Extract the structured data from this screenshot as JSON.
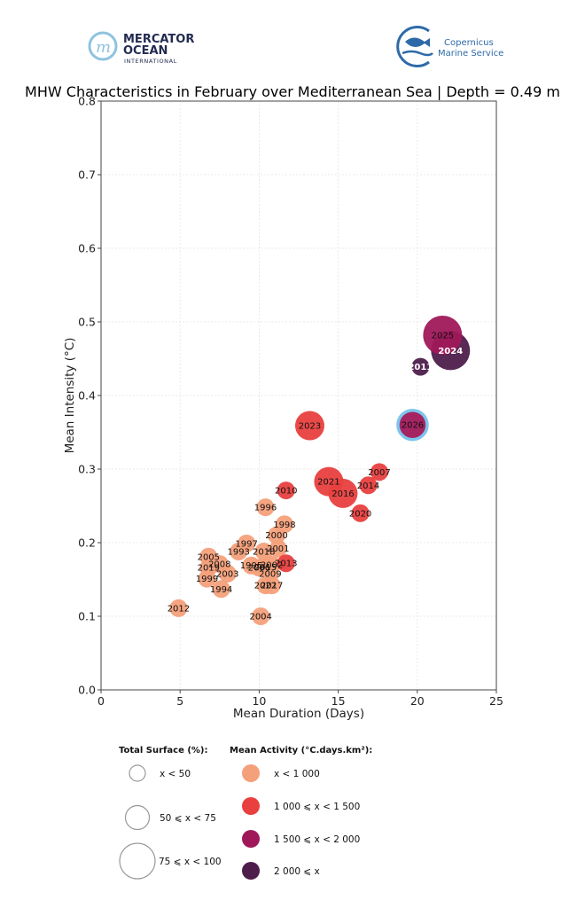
{
  "logos": {
    "mercator": {
      "line1": "MERCATOR",
      "line2": "OCEAN",
      "line3": "INTERNATIONAL"
    },
    "copernicus": {
      "line1": "Copernicus",
      "line2": "Marine Service"
    }
  },
  "chart_data": {
    "type": "scatter",
    "title": "MHW Characteristics in February over Mediterranean Sea | Depth = 0.49 m",
    "xlabel": "Mean Duration (Days)",
    "ylabel": "Mean Intensity (°C)",
    "xlim": [
      0,
      25
    ],
    "ylim": [
      0.0,
      0.8
    ],
    "xticks": [
      0,
      5,
      10,
      15,
      20,
      25
    ],
    "xtick_labels": [
      "0",
      "5",
      "10",
      "15",
      "20",
      "25"
    ],
    "yticks": [
      0.0,
      0.1,
      0.2,
      0.3,
      0.4,
      0.5,
      0.6,
      0.7,
      0.8
    ],
    "ytick_labels": [
      "0.0",
      "0.1",
      "0.2",
      "0.3",
      "0.4",
      "0.5",
      "0.6",
      "0.7",
      "0.8"
    ],
    "grid": true,
    "highlight_year": "2026",
    "highlight_color": "#7cc6ee",
    "activity_colors": {
      "lt1000": "#f4a07a",
      "1000to1500": "#e8403f",
      "1500to2000": "#a0185a",
      "ge2000": "#4e1d4c"
    },
    "points": [
      {
        "year": "2012",
        "x": 4.9,
        "y": 0.111,
        "surface": "lt50",
        "activity": "lt1000"
      },
      {
        "year": "2004",
        "x": 10.1,
        "y": 0.1,
        "surface": "lt50",
        "activity": "lt1000"
      },
      {
        "year": "1994",
        "x": 7.6,
        "y": 0.137,
        "surface": "lt50",
        "activity": "lt1000"
      },
      {
        "year": "1999",
        "x": 6.7,
        "y": 0.151,
        "surface": "lt50",
        "activity": "lt1000"
      },
      {
        "year": "2003",
        "x": 8.0,
        "y": 0.158,
        "surface": "lt50",
        "activity": "lt1000"
      },
      {
        "year": "2019",
        "x": 6.8,
        "y": 0.166,
        "surface": "lt50",
        "activity": "lt1000"
      },
      {
        "year": "2008",
        "x": 7.5,
        "y": 0.171,
        "surface": "lt50",
        "activity": "lt1000"
      },
      {
        "year": "2005",
        "x": 6.8,
        "y": 0.181,
        "surface": "lt50",
        "activity": "lt1000"
      },
      {
        "year": "1993",
        "x": 8.7,
        "y": 0.188,
        "surface": "lt50",
        "activity": "lt1000"
      },
      {
        "year": "1997",
        "x": 9.2,
        "y": 0.199,
        "surface": "lt50",
        "activity": "lt1000"
      },
      {
        "year": "1995",
        "x": 9.5,
        "y": 0.169,
        "surface": "lt50",
        "activity": "lt1000"
      },
      {
        "year": "2006",
        "x": 10.0,
        "y": 0.166,
        "surface": "lt50",
        "activity": "lt1000"
      },
      {
        "year": "2015",
        "x": 10.4,
        "y": 0.167,
        "surface": "lt50",
        "activity": "lt1000"
      },
      {
        "year": "2002",
        "x": 10.8,
        "y": 0.17,
        "surface": "lt50",
        "activity": "lt1000"
      },
      {
        "year": "2009",
        "x": 10.7,
        "y": 0.158,
        "surface": "lt50",
        "activity": "lt1000"
      },
      {
        "year": "2022",
        "x": 10.4,
        "y": 0.142,
        "surface": "lt50",
        "activity": "lt1000"
      },
      {
        "year": "2017",
        "x": 10.8,
        "y": 0.142,
        "surface": "lt50",
        "activity": "lt1000"
      },
      {
        "year": "2018",
        "x": 10.3,
        "y": 0.188,
        "surface": "lt50",
        "activity": "lt1000"
      },
      {
        "year": "2001",
        "x": 11.2,
        "y": 0.192,
        "surface": "lt50",
        "activity": "lt1000"
      },
      {
        "year": "2000",
        "x": 11.1,
        "y": 0.21,
        "surface": "lt50",
        "activity": "lt1000"
      },
      {
        "year": "1998",
        "x": 11.6,
        "y": 0.225,
        "surface": "lt50",
        "activity": "lt1000"
      },
      {
        "year": "1996",
        "x": 10.4,
        "y": 0.248,
        "surface": "lt50",
        "activity": "lt1000"
      },
      {
        "year": "2013",
        "x": 11.7,
        "y": 0.172,
        "surface": "lt50",
        "activity": "1000to1500"
      },
      {
        "year": "2010",
        "x": 11.7,
        "y": 0.271,
        "surface": "lt50",
        "activity": "1000to1500"
      },
      {
        "year": "2020",
        "x": 16.4,
        "y": 0.24,
        "surface": "lt50",
        "activity": "1000to1500"
      },
      {
        "year": "2014",
        "x": 16.9,
        "y": 0.278,
        "surface": "lt50",
        "activity": "1000to1500"
      },
      {
        "year": "2007",
        "x": 17.6,
        "y": 0.296,
        "surface": "lt50",
        "activity": "1000to1500"
      },
      {
        "year": "2021",
        "x": 14.4,
        "y": 0.283,
        "surface": "50to75",
        "activity": "1000to1500"
      },
      {
        "year": "2016",
        "x": 15.3,
        "y": 0.267,
        "surface": "50to75",
        "activity": "1000to1500"
      },
      {
        "year": "2023",
        "x": 13.2,
        "y": 0.359,
        "surface": "50to75",
        "activity": "1000to1500"
      },
      {
        "year": "2026",
        "x": 19.7,
        "y": 0.36,
        "surface": "50to75",
        "activity": "1500to2000"
      },
      {
        "year": "2011",
        "x": 20.2,
        "y": 0.439,
        "surface": "lt50",
        "activity": "ge2000"
      },
      {
        "year": "2024",
        "x": 22.1,
        "y": 0.461,
        "surface": "75to100",
        "activity": "ge2000"
      },
      {
        "year": "2025",
        "x": 21.6,
        "y": 0.482,
        "surface": "75to100",
        "activity": "1500to2000"
      }
    ],
    "legend": {
      "surface_title": "Total Surface (%):",
      "surface_items": [
        {
          "key": "lt50",
          "label": "x < 50"
        },
        {
          "key": "50to75",
          "label": "50 ⩽ x < 75"
        },
        {
          "key": "75to100",
          "label": "75 ⩽ x < 100"
        }
      ],
      "activity_title": "Mean Activity (°C.days.km²):",
      "activity_items": [
        {
          "key": "lt1000",
          "label": "x < 1 000"
        },
        {
          "key": "1000to1500",
          "label": "1 000 ⩽ x < 1 500"
        },
        {
          "key": "1500to2000",
          "label": "1 500 ⩽ x < 2 000"
        },
        {
          "key": "ge2000",
          "label": "2 000 ⩽ x"
        }
      ],
      "placement": "bottom"
    }
  }
}
